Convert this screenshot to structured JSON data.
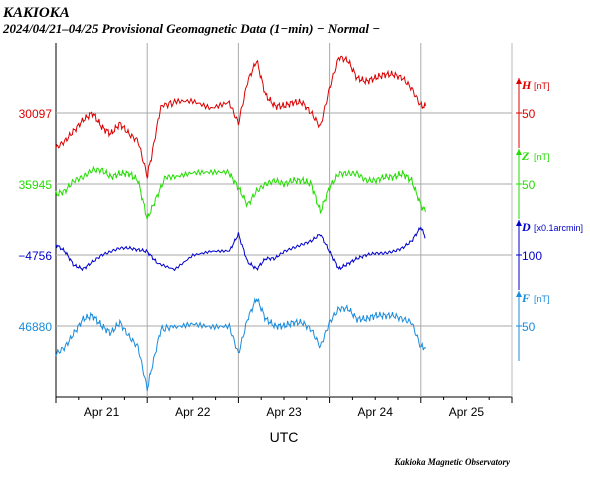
{
  "chart_data": {
    "type": "line",
    "station": "KAKIOKA",
    "title": "2024/04/21–04/25  Provisional Geomagnetic Data (1−min)  − Normal −",
    "xlabel": "UTC",
    "x_ticks": [
      "Apr 21",
      "Apr 22",
      "Apr 23",
      "Apr 24",
      "Apr 25"
    ],
    "x_range_days": [
      0,
      5
    ],
    "grid": true,
    "credit": "Kakioka Magnetic Observatory",
    "series": [
      {
        "name": "H",
        "unit": "[nT]",
        "color": "#dd0000",
        "base_label": "30097",
        "scale_label": "50",
        "days": [
          0,
          0.1,
          0.2,
          0.3,
          0.4,
          0.5,
          0.6,
          0.7,
          0.8,
          0.9,
          1.0,
          1.05,
          1.15,
          1.3,
          1.5,
          1.7,
          1.9,
          2.0,
          2.1,
          2.2,
          2.3,
          2.4,
          2.5,
          2.6,
          2.7,
          2.8,
          2.9,
          3.0,
          3.1,
          3.2,
          3.3,
          3.4,
          3.5,
          3.6,
          3.7,
          3.8,
          3.9,
          4.0,
          4.05
        ],
        "values": [
          -50,
          -40,
          -25,
          -10,
          0,
          -20,
          -30,
          -15,
          -30,
          -40,
          -90,
          -60,
          10,
          15,
          15,
          5,
          15,
          -15,
          45,
          75,
          25,
          10,
          10,
          15,
          15,
          0,
          -20,
          35,
          80,
          75,
          50,
          45,
          50,
          55,
          55,
          50,
          35,
          10,
          10
        ]
      },
      {
        "name": "Z",
        "unit": "[nT]",
        "color": "#22dd00",
        "base_label": "35945",
        "scale_label": "50",
        "days": [
          0,
          0.1,
          0.2,
          0.3,
          0.4,
          0.5,
          0.6,
          0.7,
          0.8,
          0.9,
          1.0,
          1.1,
          1.2,
          1.3,
          1.5,
          1.7,
          1.9,
          2.0,
          2.1,
          2.2,
          2.3,
          2.4,
          2.5,
          2.6,
          2.7,
          2.8,
          2.9,
          3.0,
          3.1,
          3.2,
          3.3,
          3.4,
          3.5,
          3.6,
          3.7,
          3.8,
          3.9,
          4.0,
          4.05
        ],
        "values": [
          -15,
          -10,
          5,
          10,
          20,
          20,
          10,
          15,
          15,
          5,
          -50,
          -20,
          10,
          10,
          15,
          15,
          15,
          -5,
          -30,
          -10,
          0,
          5,
          0,
          5,
          5,
          0,
          -40,
          -5,
          15,
          15,
          15,
          5,
          5,
          10,
          10,
          15,
          5,
          -30,
          -40
        ]
      },
      {
        "name": "D",
        "unit": "[x0.1arcmin]",
        "color": "#0000cc",
        "base_label": "−4756",
        "scale_label": "100",
        "days": [
          0,
          0.1,
          0.2,
          0.3,
          0.4,
          0.5,
          0.6,
          0.7,
          0.8,
          0.9,
          1.0,
          1.1,
          1.3,
          1.5,
          1.7,
          1.9,
          2.0,
          2.1,
          2.2,
          2.3,
          2.4,
          2.5,
          2.6,
          2.7,
          2.8,
          2.9,
          3.0,
          3.1,
          3.2,
          3.3,
          3.4,
          3.5,
          3.6,
          3.7,
          3.8,
          3.9,
          4.0,
          4.05
        ],
        "values": [
          30,
          10,
          -30,
          -40,
          -20,
          0,
          10,
          20,
          20,
          15,
          10,
          -20,
          -40,
          0,
          10,
          10,
          60,
          -20,
          -40,
          -10,
          -10,
          10,
          20,
          30,
          40,
          60,
          10,
          -40,
          -25,
          -10,
          0,
          5,
          5,
          10,
          20,
          40,
          80,
          50
        ]
      },
      {
        "name": "F",
        "unit": "[nT]",
        "color": "#1a8cdd",
        "base_label": "46880",
        "scale_label": "50",
        "days": [
          0,
          0.1,
          0.2,
          0.3,
          0.4,
          0.5,
          0.6,
          0.7,
          0.8,
          0.9,
          1.0,
          1.05,
          1.15,
          1.3,
          1.5,
          1.7,
          1.9,
          2.0,
          2.1,
          2.2,
          2.3,
          2.4,
          2.5,
          2.6,
          2.7,
          2.8,
          2.9,
          3.0,
          3.1,
          3.2,
          3.3,
          3.4,
          3.5,
          3.6,
          3.7,
          3.8,
          3.9,
          4.0,
          4.05
        ],
        "values": [
          -40,
          -30,
          -10,
          10,
          15,
          0,
          -10,
          5,
          -15,
          -30,
          -90,
          -60,
          -5,
          0,
          5,
          0,
          0,
          -40,
          10,
          40,
          10,
          0,
          0,
          5,
          5,
          -5,
          -30,
          5,
          25,
          25,
          10,
          10,
          15,
          15,
          15,
          10,
          5,
          -30,
          -30
        ]
      }
    ]
  }
}
